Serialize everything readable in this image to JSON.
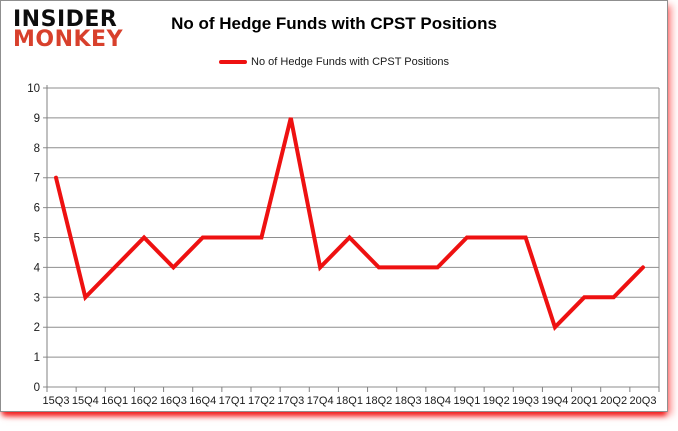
{
  "logo": {
    "line1": "INSIDER",
    "line2": "MONKEY"
  },
  "header": {
    "title": "No of Hedge Funds with CPST Positions"
  },
  "legend": {
    "label": "No of Hedge Funds with CPST Positions"
  },
  "colors": {
    "line": "#ee1111",
    "gridline": "#8e8e8e",
    "axis": "#808080",
    "tick_label": "#1a1a1a",
    "logo_black": "#0d0d0d",
    "logo_red": "#d8402c",
    "card_border": "#8f8f8f",
    "shadow_red": "#f00a0a"
  },
  "chart_data": {
    "type": "line",
    "title": "No of Hedge Funds with CPST Positions",
    "categories": [
      "15Q3",
      "15Q4",
      "16Q1",
      "16Q2",
      "16Q3",
      "16Q4",
      "17Q1",
      "17Q2",
      "17Q3",
      "17Q4",
      "18Q1",
      "18Q2",
      "18Q3",
      "18Q4",
      "19Q1",
      "19Q2",
      "19Q3",
      "19Q4",
      "20Q1",
      "20Q2",
      "20Q3"
    ],
    "series": [
      {
        "name": "No of Hedge Funds with CPST Positions",
        "values": [
          7,
          3,
          4,
          5,
          4,
          5,
          5,
          5,
          9,
          4,
          5,
          4,
          4,
          4,
          5,
          5,
          5,
          2,
          3,
          3,
          4
        ]
      }
    ],
    "xlabel": "",
    "ylabel": "",
    "ylim": [
      0,
      10
    ],
    "ytick_step": 1,
    "grid": true,
    "legend_position": "top"
  }
}
